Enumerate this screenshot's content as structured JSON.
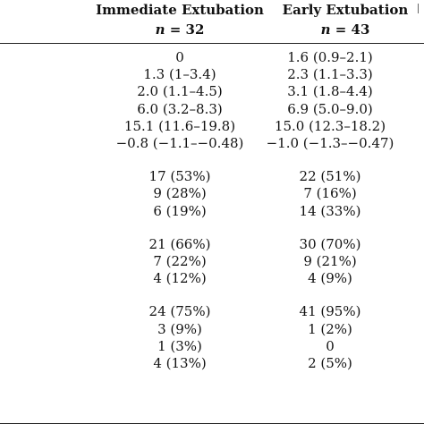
{
  "columns": {
    "immediate": {
      "title": "Immediate Extubation",
      "n_symbol": "n",
      "n_value": "= 32"
    },
    "early": {
      "title": "Early Extubation",
      "n_symbol": "n",
      "n_value": "= 43"
    }
  },
  "groups": [
    {
      "rows": [
        {
          "immediate": "0",
          "early": "1.6 (0.9–2.1)"
        },
        {
          "immediate": "1.3 (1–3.4)",
          "early": "2.3 (1.1–3.3)"
        },
        {
          "immediate": "2.0 (1.1–4.5)",
          "early": "3.1 (1.8–4.4)"
        },
        {
          "immediate": "6.0 (3.2–8.3)",
          "early": "6.9 (5.0–9.0)"
        },
        {
          "immediate": "15.1 (11.6–19.8)",
          "early": "15.0 (12.3–18.2)"
        },
        {
          "immediate": "−0.8 (−1.1–−0.48)",
          "early": "−1.0 (−1.3–−0.47)"
        }
      ]
    },
    {
      "rows": [
        {
          "immediate": "17 (53%)",
          "early": "22 (51%)"
        },
        {
          "immediate": "9 (28%)",
          "early": "7 (16%)"
        },
        {
          "immediate": "6 (19%)",
          "early": "14 (33%)"
        }
      ]
    },
    {
      "rows": [
        {
          "immediate": "21 (66%)",
          "early": "30 (70%)"
        },
        {
          "immediate": "7 (22%)",
          "early": "9 (21%)"
        },
        {
          "immediate": "4 (12%)",
          "early": "4 (9%)"
        }
      ]
    },
    {
      "rows": [
        {
          "immediate": "24 (75%)",
          "early": "41 (95%)"
        },
        {
          "immediate": "3 (9%)",
          "early": "1 (2%)"
        },
        {
          "immediate": "1 (3%)",
          "early": "0"
        },
        {
          "immediate": "4 (13%)",
          "early": "2 (5%)"
        }
      ]
    }
  ]
}
